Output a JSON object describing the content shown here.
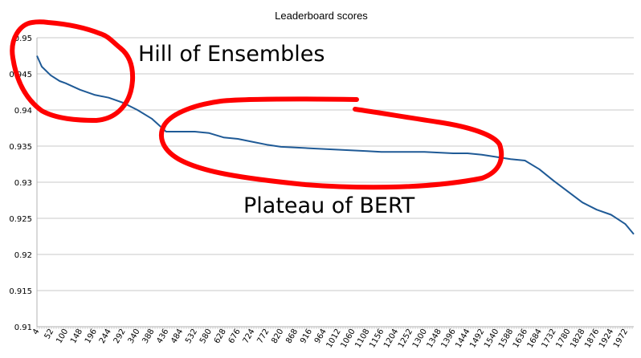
{
  "chart_data": {
    "type": "line",
    "title": "Leaderboard scores",
    "xlabel": "",
    "ylabel": "",
    "ylim": [
      0.91,
      0.95
    ],
    "xlim": [
      4,
      2000
    ],
    "grid": true,
    "legend": "none",
    "x_tick_labels": [
      "4",
      "52",
      "100",
      "148",
      "196",
      "244",
      "292",
      "340",
      "388",
      "436",
      "484",
      "532",
      "580",
      "628",
      "676",
      "724",
      "772",
      "820",
      "868",
      "916",
      "964",
      "1012",
      "1060",
      "1108",
      "1156",
      "1204",
      "1252",
      "1300",
      "1348",
      "1396",
      "1444",
      "1492",
      "1540",
      "1588",
      "1636",
      "1684",
      "1732",
      "1780",
      "1828",
      "1876",
      "1924",
      "1972"
    ],
    "y_tick_labels": [
      "0.91",
      "0.915",
      "0.92",
      "0.925",
      "0.93",
      "0.935",
      "0.94",
      "0.945",
      "0.95"
    ],
    "series": [
      {
        "color": "#1f5a96",
        "points": [
          [
            4,
            0.9475
          ],
          [
            20,
            0.946
          ],
          [
            50,
            0.9448
          ],
          [
            80,
            0.944
          ],
          [
            100,
            0.9437
          ],
          [
            148,
            0.9428
          ],
          [
            196,
            0.9421
          ],
          [
            244,
            0.9417
          ],
          [
            292,
            0.941
          ],
          [
            340,
            0.94
          ],
          [
            388,
            0.9388
          ],
          [
            420,
            0.9376
          ],
          [
            436,
            0.937
          ],
          [
            484,
            0.937
          ],
          [
            532,
            0.937
          ],
          [
            580,
            0.9368
          ],
          [
            628,
            0.9362
          ],
          [
            676,
            0.936
          ],
          [
            724,
            0.9356
          ],
          [
            772,
            0.9352
          ],
          [
            820,
            0.9349
          ],
          [
            868,
            0.9348
          ],
          [
            916,
            0.9347
          ],
          [
            964,
            0.9346
          ],
          [
            1012,
            0.9345
          ],
          [
            1060,
            0.9344
          ],
          [
            1108,
            0.9343
          ],
          [
            1156,
            0.9342
          ],
          [
            1204,
            0.9342
          ],
          [
            1252,
            0.9342
          ],
          [
            1300,
            0.9342
          ],
          [
            1348,
            0.9341
          ],
          [
            1396,
            0.934
          ],
          [
            1444,
            0.934
          ],
          [
            1492,
            0.9338
          ],
          [
            1540,
            0.9335
          ],
          [
            1588,
            0.9332
          ],
          [
            1636,
            0.933
          ],
          [
            1684,
            0.9318
          ],
          [
            1732,
            0.9302
          ],
          [
            1780,
            0.9287
          ],
          [
            1828,
            0.9272
          ],
          [
            1876,
            0.9262
          ],
          [
            1924,
            0.9255
          ],
          [
            1972,
            0.9242
          ],
          [
            2000,
            0.9228
          ]
        ]
      }
    ],
    "annotations": [
      {
        "text": "Hill of Ensembles"
      },
      {
        "text": "Plateau of BERT"
      }
    ],
    "highlight_color": "#ff0000"
  }
}
